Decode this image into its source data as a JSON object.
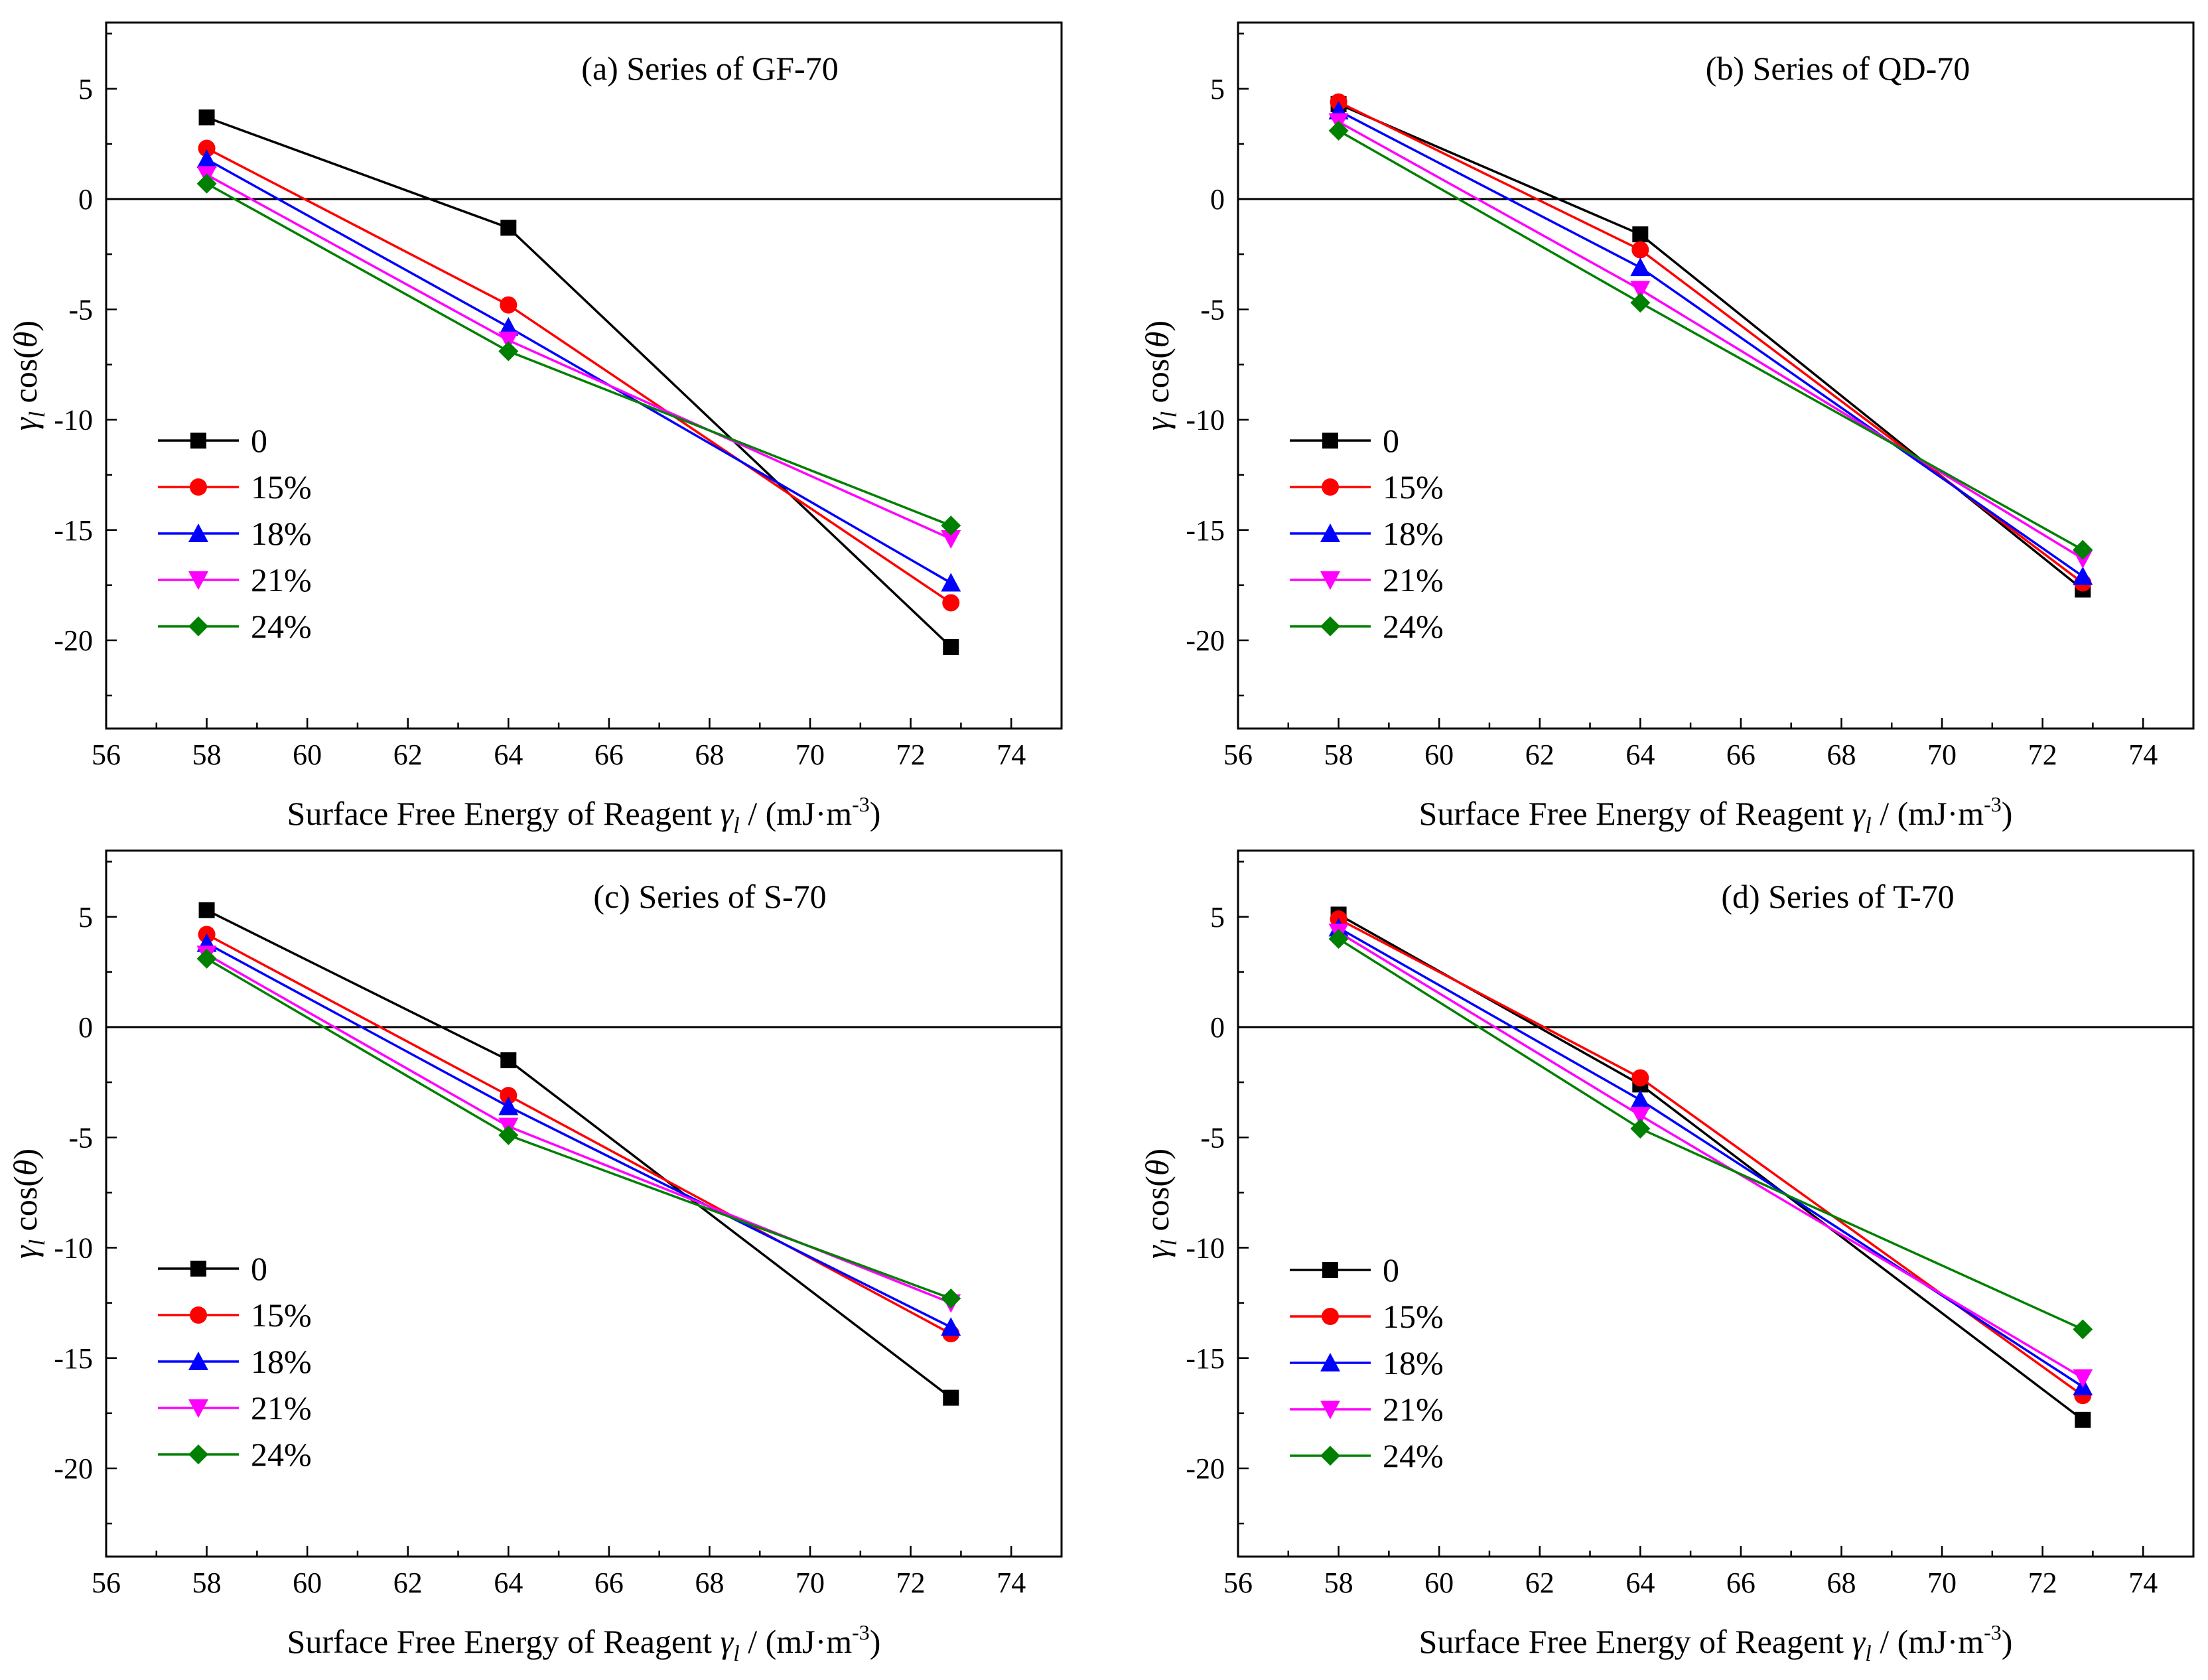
{
  "chart_data": [
    {
      "type": "line",
      "title": "(a)  Series of GF-70",
      "xlabel": "Surface Free Energy of Reagent  γl  / (mJ·m-3)",
      "ylabel": "γl cos(θ)",
      "xlim": [
        56,
        75
      ],
      "ylim": [
        -24,
        8
      ],
      "xticks": [
        56,
        58,
        60,
        62,
        64,
        66,
        68,
        70,
        72,
        74
      ],
      "yticks": [
        -20,
        -15,
        -10,
        -5,
        0,
        5
      ],
      "x": [
        58,
        64,
        72.8
      ],
      "series": [
        {
          "name": "0",
          "color": "#000000",
          "marker": "square",
          "values": [
            3.7,
            -1.3,
            -20.3
          ]
        },
        {
          "name": "15%",
          "color": "#ff0000",
          "marker": "circle",
          "values": [
            2.3,
            -4.8,
            -18.3
          ]
        },
        {
          "name": "18%",
          "color": "#0000ff",
          "marker": "triangle-up",
          "values": [
            1.8,
            -5.8,
            -17.4
          ]
        },
        {
          "name": "21%",
          "color": "#ff00ff",
          "marker": "triangle-down",
          "values": [
            1.1,
            -6.4,
            -15.4
          ]
        },
        {
          "name": "24%",
          "color": "#008000",
          "marker": "diamond",
          "values": [
            0.7,
            -6.9,
            -14.8
          ]
        }
      ],
      "legend": "middle-left"
    },
    {
      "type": "line",
      "title": "(b)  Series of QD-70",
      "xlabel": "Surface Free Energy of Reagent  γl  / (mJ·m-3)",
      "ylabel": "γl cos(θ)",
      "xlim": [
        56,
        75
      ],
      "ylim": [
        -24,
        8
      ],
      "xticks": [
        56,
        58,
        60,
        62,
        64,
        66,
        68,
        70,
        72,
        74
      ],
      "yticks": [
        -20,
        -15,
        -10,
        -5,
        0,
        5
      ],
      "x": [
        58,
        64,
        72.8
      ],
      "series": [
        {
          "name": "0",
          "color": "#000000",
          "marker": "square",
          "values": [
            4.3,
            -1.6,
            -17.7
          ]
        },
        {
          "name": "15%",
          "color": "#ff0000",
          "marker": "circle",
          "values": [
            4.4,
            -2.3,
            -17.4
          ]
        },
        {
          "name": "18%",
          "color": "#0000ff",
          "marker": "triangle-up",
          "values": [
            4.0,
            -3.1,
            -17.1
          ]
        },
        {
          "name": "21%",
          "color": "#ff00ff",
          "marker": "triangle-down",
          "values": [
            3.5,
            -4.1,
            -16.3
          ]
        },
        {
          "name": "24%",
          "color": "#008000",
          "marker": "diamond",
          "values": [
            3.1,
            -4.7,
            -15.9
          ]
        }
      ],
      "legend": "middle-left"
    },
    {
      "type": "line",
      "title": "(c)  Series of  S-70",
      "xlabel": "Surface Free Energy of Reagent  γl  / (mJ·m-3)",
      "ylabel": "γl cos(θ)",
      "xlim": [
        56,
        75
      ],
      "ylim": [
        -24,
        8
      ],
      "xticks": [
        56,
        58,
        60,
        62,
        64,
        66,
        68,
        70,
        72,
        74
      ],
      "yticks": [
        -20,
        -15,
        -10,
        -5,
        0,
        5
      ],
      "x": [
        58,
        64,
        72.8
      ],
      "series": [
        {
          "name": "0",
          "color": "#000000",
          "marker": "square",
          "values": [
            5.3,
            -1.5,
            -16.8
          ]
        },
        {
          "name": "15%",
          "color": "#ff0000",
          "marker": "circle",
          "values": [
            4.2,
            -3.1,
            -13.9
          ]
        },
        {
          "name": "18%",
          "color": "#0000ff",
          "marker": "triangle-up",
          "values": [
            3.8,
            -3.6,
            -13.6
          ]
        },
        {
          "name": "21%",
          "color": "#ff00ff",
          "marker": "triangle-down",
          "values": [
            3.3,
            -4.5,
            -12.5
          ]
        },
        {
          "name": "24%",
          "color": "#008000",
          "marker": "diamond",
          "values": [
            3.1,
            -4.9,
            -12.3
          ]
        }
      ],
      "legend": "lower-left"
    },
    {
      "type": "line",
      "title": "(d)  Series of  T-70",
      "xlabel": "Surface Free Energy of Reagent  γl  / (mJ·m-3)",
      "ylabel": "γl cos(θ)",
      "xlim": [
        56,
        75
      ],
      "ylim": [
        -24,
        8
      ],
      "xticks": [
        56,
        58,
        60,
        62,
        64,
        66,
        68,
        70,
        72,
        74
      ],
      "yticks": [
        -20,
        -15,
        -10,
        -5,
        0,
        5
      ],
      "x": [
        58,
        64,
        72.8
      ],
      "series": [
        {
          "name": "0",
          "color": "#000000",
          "marker": "square",
          "values": [
            5.1,
            -2.6,
            -17.8
          ]
        },
        {
          "name": "15%",
          "color": "#ff0000",
          "marker": "circle",
          "values": [
            4.9,
            -2.3,
            -16.7
          ]
        },
        {
          "name": "18%",
          "color": "#0000ff",
          "marker": "triangle-up",
          "values": [
            4.5,
            -3.3,
            -16.3
          ]
        },
        {
          "name": "21%",
          "color": "#ff00ff",
          "marker": "triangle-down",
          "values": [
            4.3,
            -4.0,
            -15.9
          ]
        },
        {
          "name": "24%",
          "color": "#008000",
          "marker": "diamond",
          "values": [
            4.0,
            -4.6,
            -13.7
          ]
        }
      ],
      "legend": "lower-left"
    }
  ]
}
